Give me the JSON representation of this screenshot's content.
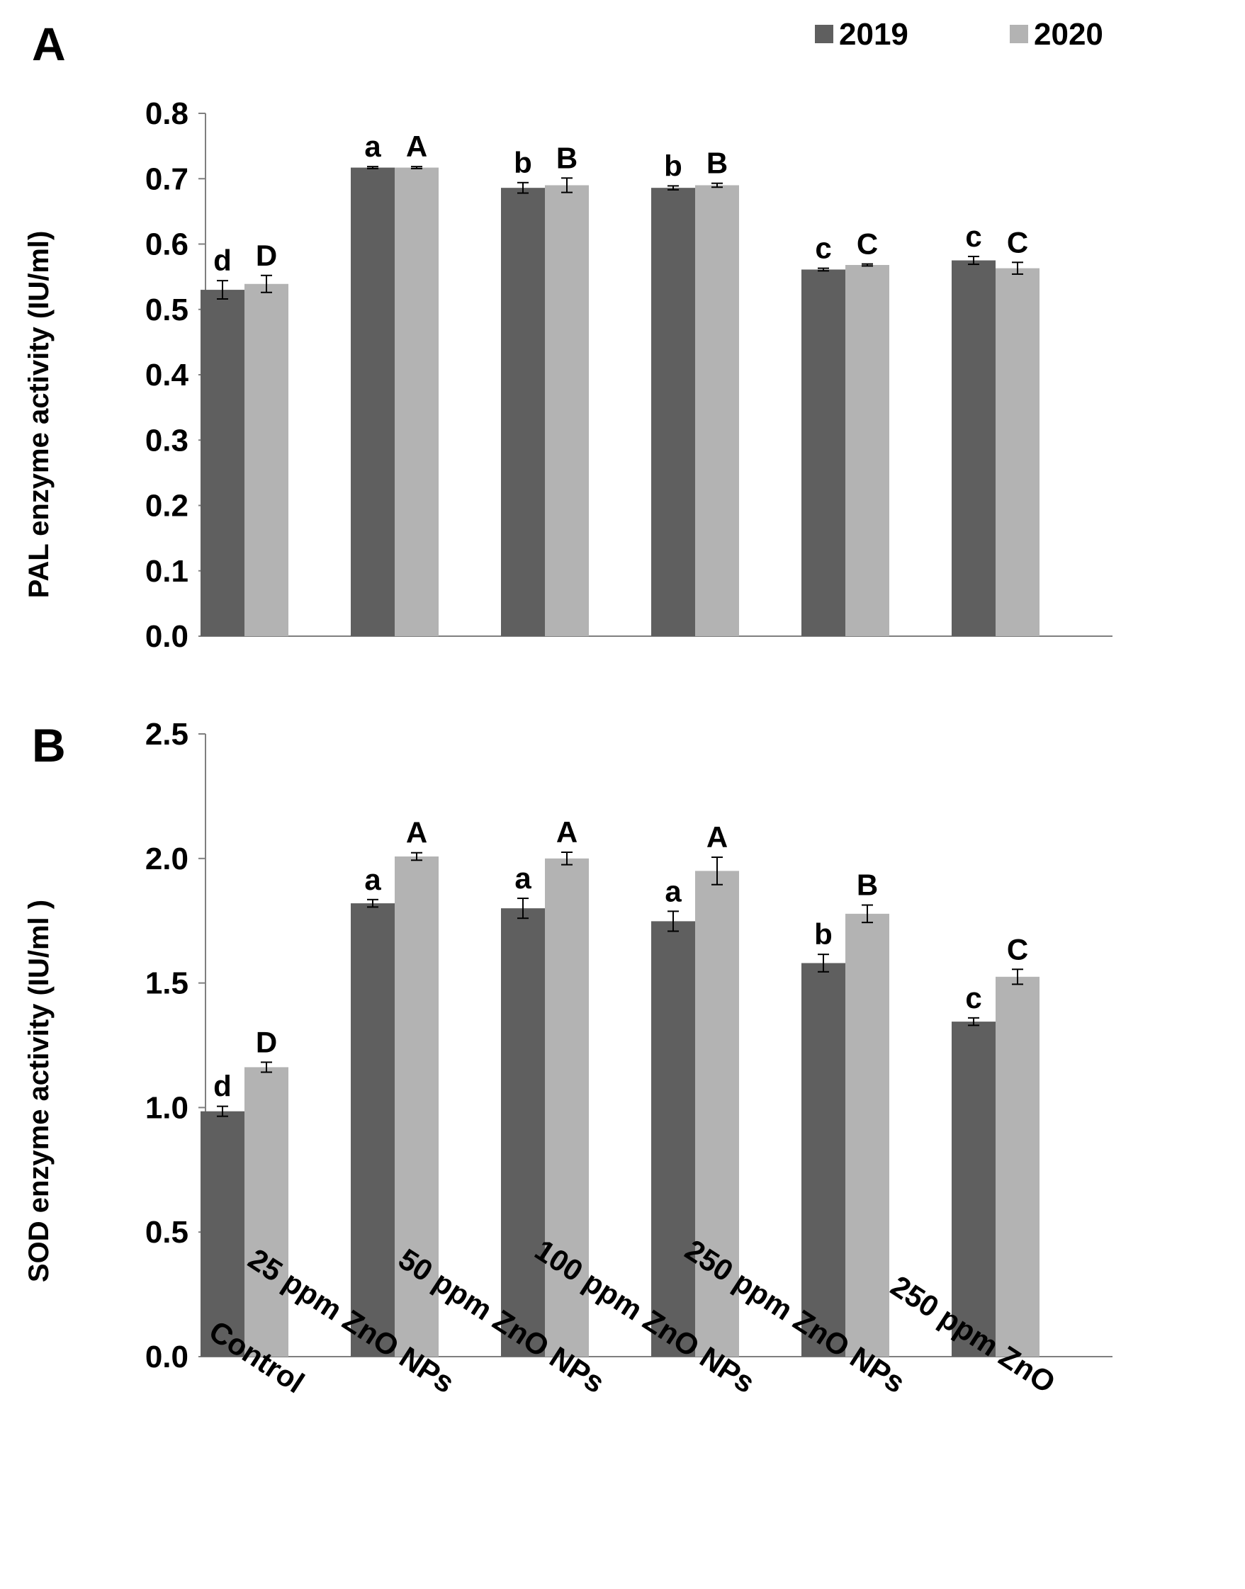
{
  "legend": [
    {
      "label": "2019",
      "color": "#5f5f5f"
    },
    {
      "label": "2020",
      "color": "#b3b3b3"
    }
  ],
  "categories": [
    "Control",
    "25 ppm ZnO NPs",
    "50 ppm ZnO NPs",
    "100 ppm ZnO NPs",
    "250 ppm ZnO NPs",
    "250 ppm ZnO"
  ],
  "chart_data": [
    {
      "type": "bar",
      "panel": "A",
      "title": "",
      "xlabel": "",
      "ylabel": "PAL enzyme activity (IU/ml)",
      "ylim": [
        0,
        0.8
      ],
      "yticks": [
        "0.0",
        "0.1",
        "0.2",
        "0.3",
        "0.4",
        "0.5",
        "0.6",
        "0.7",
        "0.8"
      ],
      "ytick_values": [
        0,
        0.1,
        0.2,
        0.3,
        0.4,
        0.5,
        0.6,
        0.7,
        0.8
      ],
      "categories": [
        "Control",
        "25 ppm ZnO NPs",
        "50 ppm ZnO NPs",
        "100 ppm ZnO NPs",
        "250 ppm ZnO NPs",
        "250 ppm ZnO"
      ],
      "series": [
        {
          "name": "2019",
          "color": "#5f5f5f",
          "values": [
            0.53,
            0.717,
            0.686,
            0.686,
            0.561,
            0.575
          ],
          "errors": [
            0.014,
            0.0015,
            0.008,
            0.003,
            0.002,
            0.006
          ],
          "labels": [
            "d",
            "a",
            "b",
            "b",
            "c",
            "c"
          ]
        },
        {
          "name": "2020",
          "color": "#b3b3b3",
          "values": [
            0.539,
            0.717,
            0.69,
            0.69,
            0.568,
            0.563
          ],
          "errors": [
            0.013,
            0.0015,
            0.011,
            0.003,
            0.0015,
            0.009
          ],
          "labels": [
            "D",
            "A",
            "B",
            "B",
            "C",
            "C"
          ]
        }
      ]
    },
    {
      "type": "bar",
      "panel": "B",
      "title": "",
      "xlabel": "",
      "ylabel": "SOD enzyme activity (IU/ml )",
      "ylim": [
        0,
        2.5
      ],
      "yticks": [
        "0.0",
        "0.5",
        "1.0",
        "1.5",
        "2.0",
        "2.5"
      ],
      "ytick_values": [
        0,
        0.5,
        1.0,
        1.5,
        2.0,
        2.5
      ],
      "categories": [
        "Control",
        "25 ppm ZnO NPs",
        "50 ppm ZnO NPs",
        "100 ppm ZnO NPs",
        "250 ppm ZnO NPs",
        "250 ppm ZnO"
      ],
      "series": [
        {
          "name": "2019",
          "color": "#5f5f5f",
          "values": [
            0.985,
            1.82,
            1.8,
            1.748,
            1.58,
            1.345
          ],
          "errors": [
            0.02,
            0.015,
            0.04,
            0.04,
            0.035,
            0.015
          ],
          "labels": [
            "d",
            "a",
            "a",
            "a",
            "b",
            "c"
          ]
        },
        {
          "name": "2020",
          "color": "#b3b3b3",
          "values": [
            1.162,
            2.008,
            2.0,
            1.95,
            1.778,
            1.525
          ],
          "errors": [
            0.02,
            0.015,
            0.025,
            0.055,
            0.035,
            0.03
          ],
          "labels": [
            "D",
            "A",
            "A",
            "A",
            "B",
            "C"
          ]
        }
      ]
    }
  ]
}
